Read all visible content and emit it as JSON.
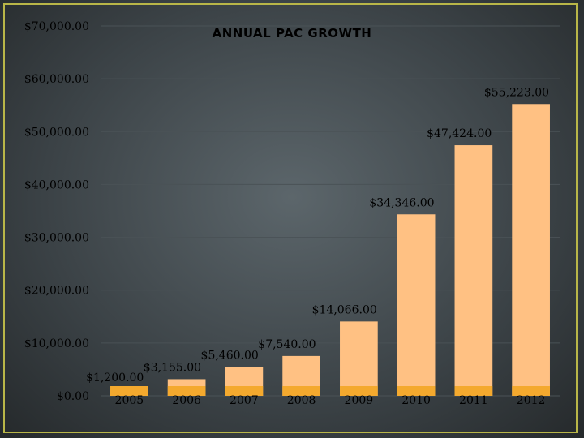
{
  "chart_data": {
    "type": "bar",
    "title": "ANNUAL PAC GROWTH",
    "categories": [
      "2005",
      "2006",
      "2007",
      "2008",
      "2009",
      "2010",
      "2011",
      "2012"
    ],
    "values": [
      1200,
      3155,
      5460,
      7540,
      14066,
      34346,
      47424,
      55223
    ],
    "data_labels": [
      "$1,200.00",
      "$3,155.00",
      "$5,460.00",
      "$7,540.00",
      "$14,066.00",
      "$34,346.00",
      "$47,424.00",
      "$55,223.00"
    ],
    "yticks": [
      0,
      10000,
      20000,
      30000,
      40000,
      50000,
      60000,
      70000
    ],
    "ytick_labels": [
      "$0.00",
      "$10,000.00",
      "$20,000.00",
      "$30,000.00",
      "$40,000.00",
      "$50,000.00",
      "$60,000.00",
      "$70,000.00"
    ],
    "ylim": [
      0,
      70000
    ],
    "grid": true,
    "xlabel": "",
    "ylabel": "",
    "colors": {
      "bar": "#ffc183",
      "bar_base": "#f4a92e",
      "grid": "#4a5256",
      "frame": "#b9b648"
    }
  }
}
